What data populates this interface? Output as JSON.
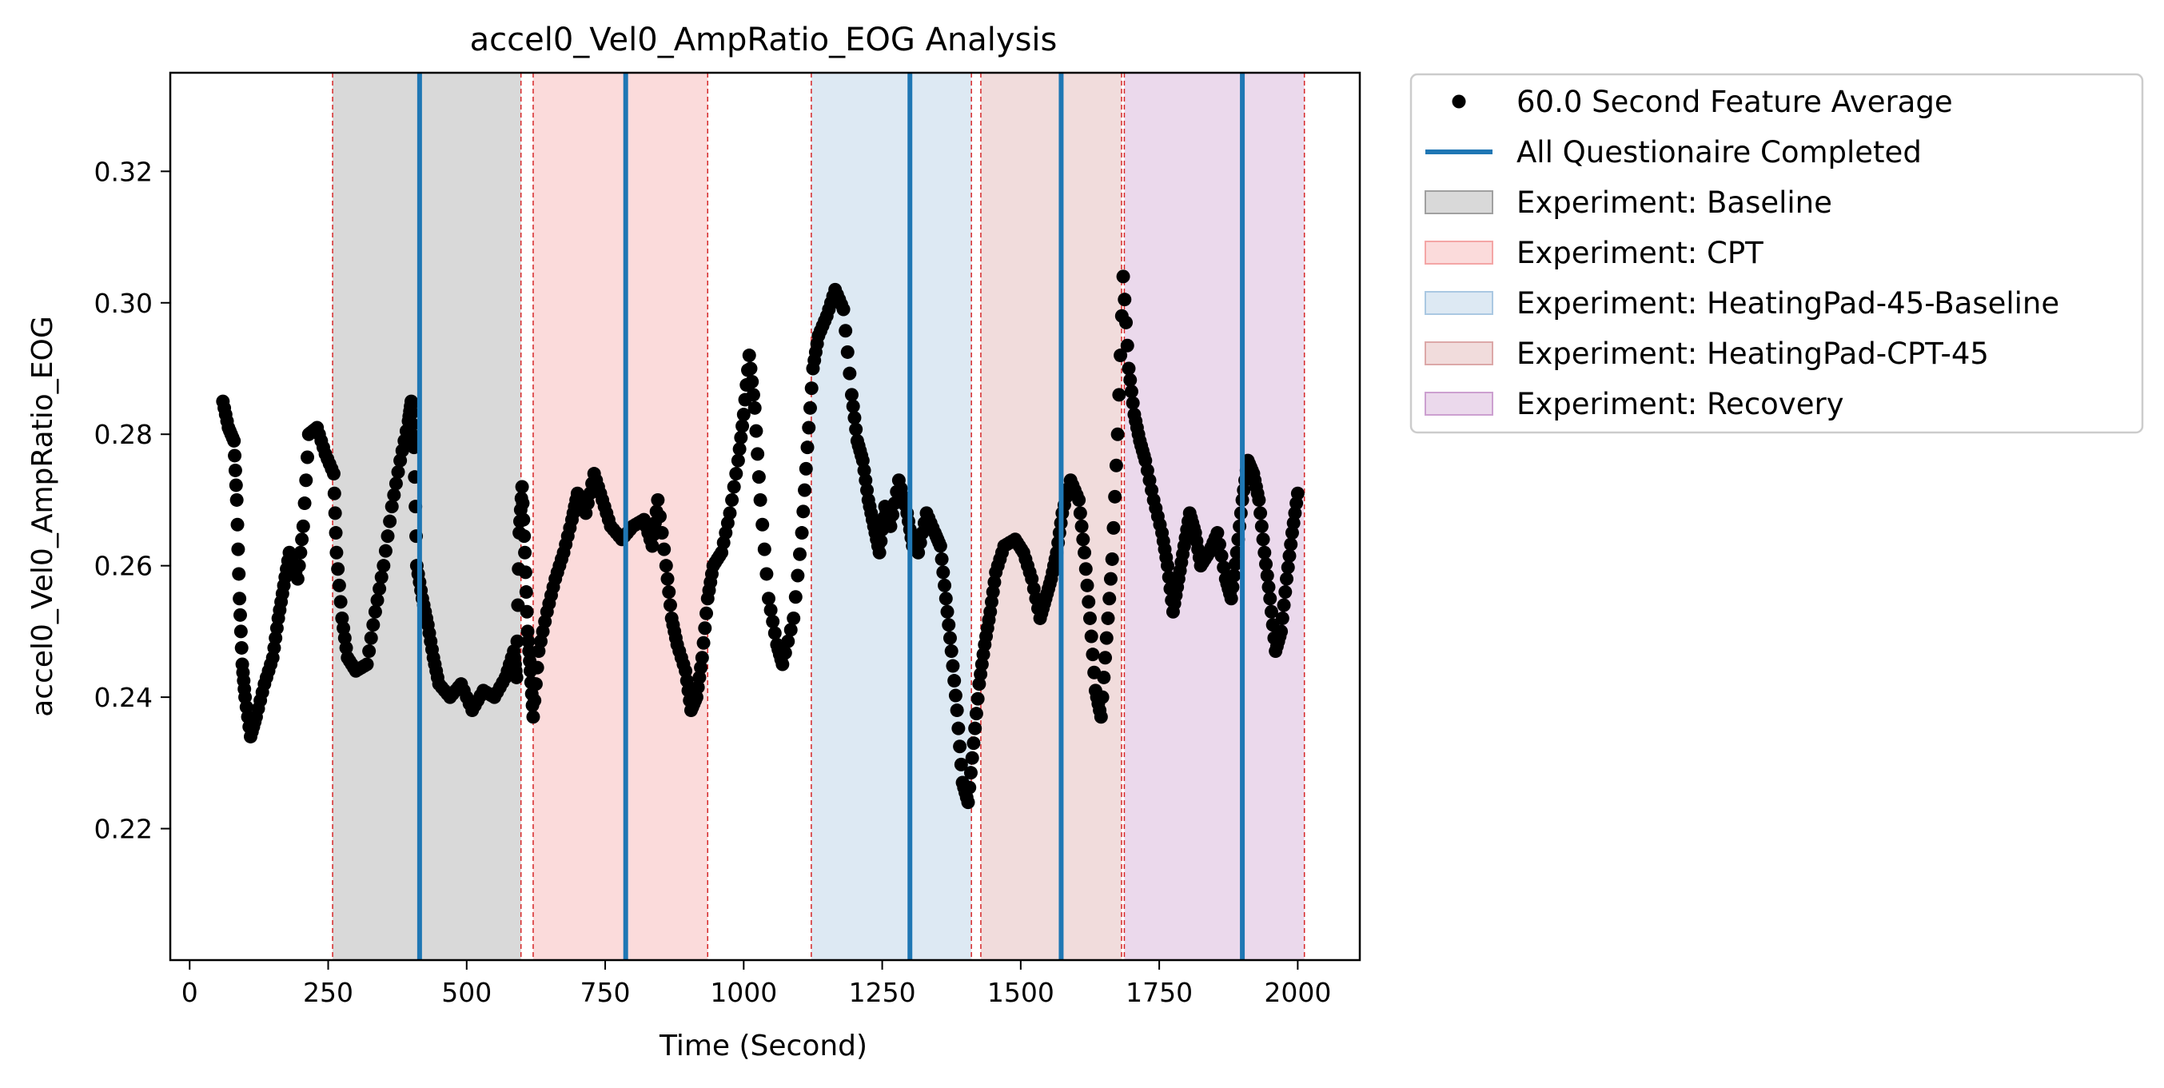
{
  "chart_data": {
    "type": "scatter",
    "title": "accel0_Vel0_AmpRatio_EOG Analysis",
    "xlabel": "Time (Second)",
    "ylabel": "accel0_Vel0_AmpRatio_EOG",
    "xlim": [
      -35,
      2112
    ],
    "ylim": [
      0.2,
      0.335
    ],
    "xticks": [
      0,
      250,
      500,
      750,
      1000,
      1250,
      1500,
      1750,
      2000
    ],
    "yticks": [
      0.22,
      0.24,
      0.26,
      0.28,
      0.3,
      0.32
    ],
    "xtick_labels": [
      "0",
      "250",
      "500",
      "750",
      "1000",
      "1250",
      "1500",
      "1750",
      "2000"
    ],
    "ytick_labels": [
      "0.22",
      "0.24",
      "0.26",
      "0.28",
      "0.30",
      "0.32"
    ],
    "grid": false,
    "legend_position": "outside-right-top",
    "series": [
      {
        "name": "60.0 Second Feature Average",
        "marker": "circle",
        "color": "#000000",
        "anchors": [
          [
            60,
            0.285
          ],
          [
            70,
            0.281
          ],
          [
            80,
            0.279
          ],
          [
            85,
            0.27
          ],
          [
            90,
            0.255
          ],
          [
            95,
            0.245
          ],
          [
            100,
            0.24
          ],
          [
            110,
            0.234
          ],
          [
            120,
            0.237
          ],
          [
            135,
            0.242
          ],
          [
            150,
            0.246
          ],
          [
            160,
            0.252
          ],
          [
            170,
            0.257
          ],
          [
            180,
            0.262
          ],
          [
            195,
            0.258
          ],
          [
            205,
            0.266
          ],
          [
            215,
            0.28
          ],
          [
            230,
            0.281
          ],
          [
            245,
            0.277
          ],
          [
            260,
            0.274
          ],
          [
            265,
            0.262
          ],
          [
            275,
            0.252
          ],
          [
            285,
            0.246
          ],
          [
            300,
            0.244
          ],
          [
            320,
            0.245
          ],
          [
            335,
            0.253
          ],
          [
            350,
            0.26
          ],
          [
            365,
            0.269
          ],
          [
            380,
            0.276
          ],
          [
            395,
            0.282
          ],
          [
            400,
            0.285
          ],
          [
            405,
            0.278
          ],
          [
            410,
            0.26
          ],
          [
            420,
            0.255
          ],
          [
            430,
            0.251
          ],
          [
            440,
            0.246
          ],
          [
            450,
            0.242
          ],
          [
            470,
            0.24
          ],
          [
            490,
            0.242
          ],
          [
            510,
            0.238
          ],
          [
            530,
            0.241
          ],
          [
            550,
            0.24
          ],
          [
            570,
            0.243
          ],
          [
            585,
            0.247
          ],
          [
            590,
            0.243
          ],
          [
            595,
            0.265
          ],
          [
            600,
            0.272
          ],
          [
            605,
            0.262
          ],
          [
            610,
            0.25
          ],
          [
            615,
            0.244
          ],
          [
            620,
            0.237
          ],
          [
            630,
            0.247
          ],
          [
            645,
            0.253
          ],
          [
            660,
            0.258
          ],
          [
            675,
            0.262
          ],
          [
            690,
            0.267
          ],
          [
            700,
            0.271
          ],
          [
            715,
            0.268
          ],
          [
            730,
            0.274
          ],
          [
            745,
            0.27
          ],
          [
            760,
            0.266
          ],
          [
            780,
            0.264
          ],
          [
            800,
            0.266
          ],
          [
            820,
            0.267
          ],
          [
            835,
            0.263
          ],
          [
            845,
            0.27
          ],
          [
            860,
            0.26
          ],
          [
            870,
            0.252
          ],
          [
            880,
            0.248
          ],
          [
            895,
            0.244
          ],
          [
            905,
            0.238
          ],
          [
            915,
            0.24
          ],
          [
            925,
            0.246
          ],
          [
            935,
            0.255
          ],
          [
            945,
            0.26
          ],
          [
            960,
            0.262
          ],
          [
            975,
            0.268
          ],
          [
            990,
            0.276
          ],
          [
            1000,
            0.283
          ],
          [
            1010,
            0.292
          ],
          [
            1020,
            0.284
          ],
          [
            1030,
            0.27
          ],
          [
            1045,
            0.255
          ],
          [
            1060,
            0.248
          ],
          [
            1070,
            0.245
          ],
          [
            1090,
            0.252
          ],
          [
            1105,
            0.265
          ],
          [
            1115,
            0.278
          ],
          [
            1125,
            0.29
          ],
          [
            1135,
            0.295
          ],
          [
            1150,
            0.298
          ],
          [
            1165,
            0.302
          ],
          [
            1180,
            0.299
          ],
          [
            1195,
            0.286
          ],
          [
            1205,
            0.279
          ],
          [
            1215,
            0.276
          ],
          [
            1225,
            0.27
          ],
          [
            1235,
            0.266
          ],
          [
            1245,
            0.262
          ],
          [
            1255,
            0.269
          ],
          [
            1265,
            0.266
          ],
          [
            1280,
            0.273
          ],
          [
            1295,
            0.268
          ],
          [
            1305,
            0.263
          ],
          [
            1315,
            0.262
          ],
          [
            1330,
            0.268
          ],
          [
            1345,
            0.265
          ],
          [
            1355,
            0.263
          ],
          [
            1365,
            0.255
          ],
          [
            1375,
            0.247
          ],
          [
            1385,
            0.238
          ],
          [
            1395,
            0.227
          ],
          [
            1405,
            0.224
          ],
          [
            1415,
            0.233
          ],
          [
            1425,
            0.242
          ],
          [
            1435,
            0.248
          ],
          [
            1445,
            0.253
          ],
          [
            1455,
            0.259
          ],
          [
            1470,
            0.263
          ],
          [
            1490,
            0.264
          ],
          [
            1505,
            0.262
          ],
          [
            1520,
            0.258
          ],
          [
            1535,
            0.252
          ],
          [
            1545,
            0.255
          ],
          [
            1555,
            0.258
          ],
          [
            1565,
            0.262
          ],
          [
            1575,
            0.268
          ],
          [
            1590,
            0.273
          ],
          [
            1605,
            0.27
          ],
          [
            1615,
            0.262
          ],
          [
            1625,
            0.252
          ],
          [
            1635,
            0.241
          ],
          [
            1645,
            0.237
          ],
          [
            1655,
            0.249
          ],
          [
            1665,
            0.261
          ],
          [
            1675,
            0.28
          ],
          [
            1685,
            0.304
          ],
          [
            1695,
            0.29
          ],
          [
            1705,
            0.283
          ],
          [
            1715,
            0.279
          ],
          [
            1725,
            0.276
          ],
          [
            1740,
            0.27
          ],
          [
            1755,
            0.265
          ],
          [
            1765,
            0.26
          ],
          [
            1775,
            0.253
          ],
          [
            1785,
            0.258
          ],
          [
            1795,
            0.263
          ],
          [
            1805,
            0.268
          ],
          [
            1815,
            0.265
          ],
          [
            1825,
            0.26
          ],
          [
            1840,
            0.262
          ],
          [
            1855,
            0.265
          ],
          [
            1870,
            0.258
          ],
          [
            1880,
            0.255
          ],
          [
            1890,
            0.262
          ],
          [
            1900,
            0.27
          ],
          [
            1910,
            0.276
          ],
          [
            1920,
            0.274
          ],
          [
            1930,
            0.27
          ],
          [
            1940,
            0.262
          ],
          [
            1950,
            0.255
          ],
          [
            1960,
            0.247
          ],
          [
            1970,
            0.25
          ],
          [
            1980,
            0.258
          ],
          [
            1990,
            0.265
          ],
          [
            2000,
            0.271
          ]
        ]
      },
      {
        "name": "All Questionaire Completed",
        "type": "vline",
        "color": "#1f77b4",
        "x": [
          415,
          787,
          1300,
          1573,
          1900
        ]
      }
    ],
    "regions": [
      {
        "name": "Experiment: Baseline",
        "color": "#a0a0a0",
        "opacity": 0.4,
        "x0": 258,
        "x1": 598
      },
      {
        "name": "Experiment: CPT",
        "color": "#f4a6a6",
        "opacity": 0.4,
        "x0": 620,
        "x1": 935
      },
      {
        "name": "Experiment: HeatingPad-45-Baseline",
        "color": "#aac8e2",
        "opacity": 0.4,
        "x0": 1122,
        "x1": 1411
      },
      {
        "name": "Experiment: HeatingPad-CPT-45",
        "color": "#dca8a8",
        "opacity": 0.4,
        "x0": 1428,
        "x1": 1682
      },
      {
        "name": "Experiment: Recovery",
        "color": "#cca0d0",
        "opacity": 0.4,
        "x0": 1687,
        "x1": 2012
      }
    ],
    "boundary_lines": {
      "color": "#d62728",
      "x": [
        258,
        598,
        620,
        935,
        1122,
        1411,
        1428,
        1682,
        1687,
        2012
      ]
    },
    "legend": [
      {
        "label": "60.0 Second Feature Average",
        "kind": "marker",
        "color": "#000000"
      },
      {
        "label": "All Questionaire Completed",
        "kind": "line",
        "color": "#1f77b4"
      },
      {
        "label": "Experiment: Baseline",
        "kind": "patch",
        "color": "#a0a0a0"
      },
      {
        "label": "Experiment: CPT",
        "kind": "patch",
        "color": "#f4a6a6"
      },
      {
        "label": "Experiment: HeatingPad-45-Baseline",
        "kind": "patch",
        "color": "#aac8e2"
      },
      {
        "label": "Experiment: HeatingPad-CPT-45",
        "kind": "patch",
        "color": "#dca8a8"
      },
      {
        "label": "Experiment: Recovery",
        "kind": "patch",
        "color": "#cca0d0"
      }
    ]
  }
}
